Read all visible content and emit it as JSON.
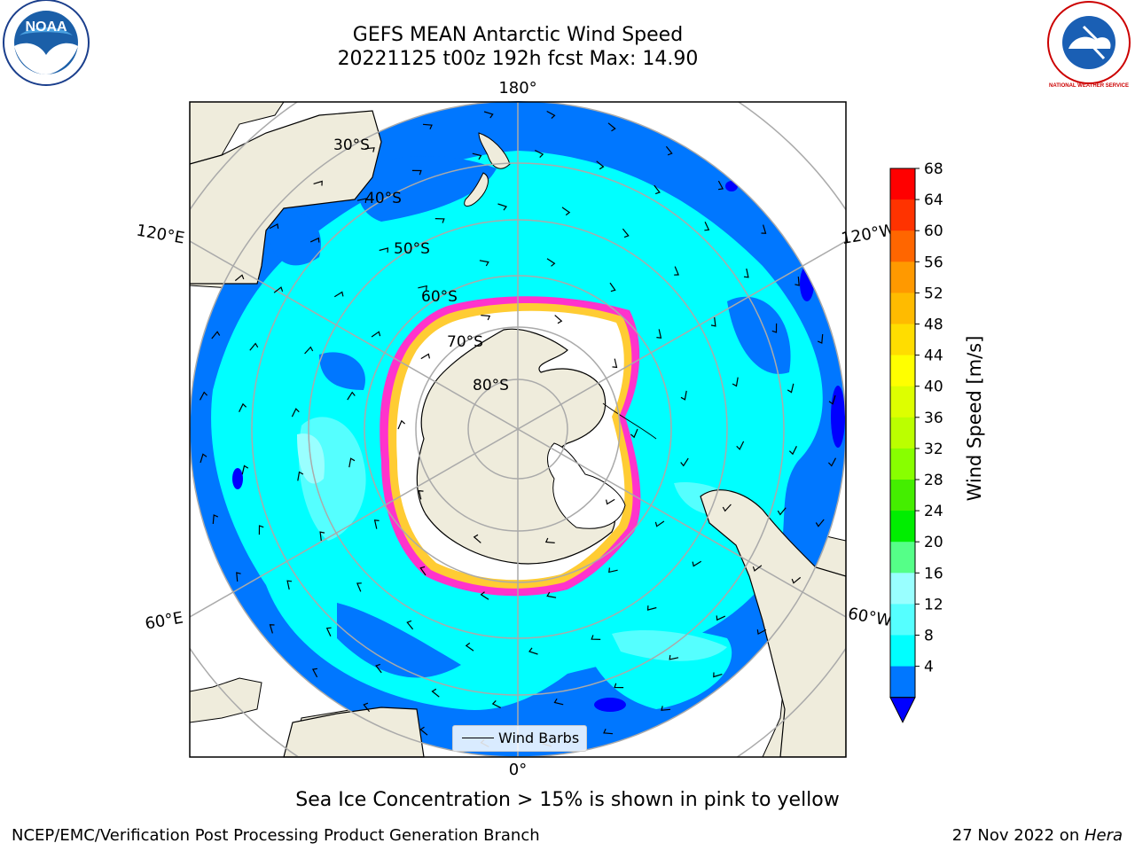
{
  "header": {
    "title_line1": "GEFS MEAN Antarctic Wind Speed",
    "title_line2": "20221125 t00z 192h fcst   Max: 14.90"
  },
  "logos": {
    "left": "NOAA",
    "right": "NATIONAL WEATHER SERVICE"
  },
  "map": {
    "longitude_labels": [
      "180°",
      "120°E",
      "120°W",
      "60°E",
      "60°W",
      "0°"
    ],
    "latitude_labels": [
      "30°S",
      "40°S",
      "50°S",
      "60°S",
      "70°S",
      "80°S"
    ],
    "legend_label": "Wind Barbs",
    "colors": {
      "land": "#efecdc",
      "sea_ice": "#ffffff",
      "ice_edge_pink": "#ff33cc",
      "ice_edge_yellow": "#ffcc33",
      "speed_4_8": "#0077ff",
      "speed_8_12": "#00ffff",
      "speed_12_16": "#55ffff",
      "speed_16_20": "#99ffff",
      "min_extend": "#0000ff"
    }
  },
  "colorbar": {
    "label": "Wind Speed [m/s]",
    "ticks": [
      "68",
      "64",
      "60",
      "56",
      "52",
      "48",
      "44",
      "40",
      "36",
      "32",
      "28",
      "24",
      "20",
      "16",
      "12",
      "8",
      "4"
    ],
    "colors_top_to_bottom": [
      "#ff0000",
      "#ff3300",
      "#ff6600",
      "#ff9900",
      "#ffbb00",
      "#ffdd00",
      "#ffff00",
      "#ddff00",
      "#bbff00",
      "#88ff00",
      "#44ee00",
      "#00ee00",
      "#55ff88",
      "#99ffff",
      "#55ffff",
      "#00ffff",
      "#0077ff"
    ],
    "min_extend_color": "#0000ff"
  },
  "caption": "Sea Ice Concentration > 15% is shown in pink to yellow",
  "footer": {
    "left": "NCEP/EMC/Verification Post Processing Product Generation Branch",
    "right_date": "27 Nov 2022 on ",
    "right_machine": "Hera"
  }
}
